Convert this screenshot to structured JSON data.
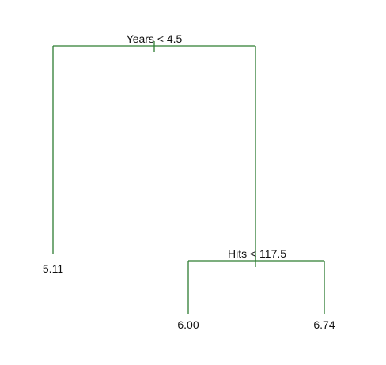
{
  "tree": {
    "line_color": "#2e7d32",
    "root_split": {
      "label": "Years < 4.5"
    },
    "inner_split": {
      "label": "Hits < 117.5"
    },
    "leaves": {
      "left": {
        "value": "5.11"
      },
      "middle": {
        "value": "6.00"
      },
      "right": {
        "value": "6.74"
      }
    }
  }
}
